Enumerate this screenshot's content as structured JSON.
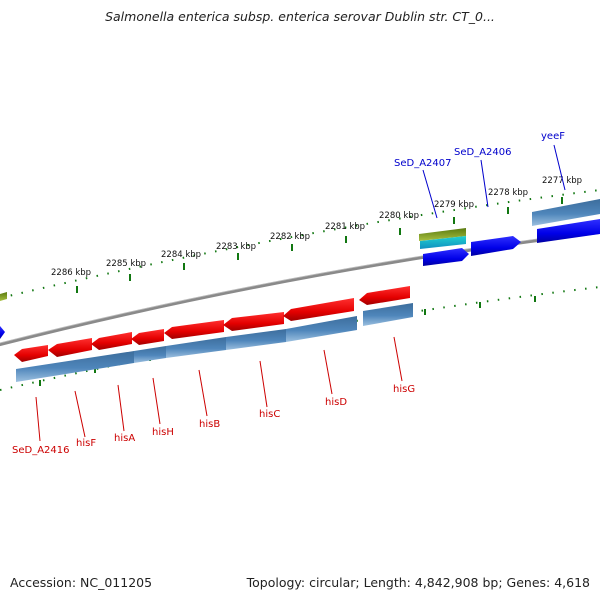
{
  "title": "Salmonella enterica subsp. enterica serovar Dublin str. CT_0...",
  "footer": {
    "accession": "Accession: NC_011205",
    "topology": "Topology: circular; Length: 4,842,908 bp; Genes: 4,618"
  },
  "scale_labels": [
    "2286 kbp",
    "2285 kbp",
    "2284 kbp",
    "2283 kbp",
    "2282 kbp",
    "2281 kbp",
    "2280 kbp",
    "2279 kbp",
    "2278 kbp",
    "2277 kbp"
  ],
  "gene_labels": {
    "red": [
      "SeD_A2416",
      "hisF",
      "hisA",
      "hisH",
      "hisB",
      "hisC",
      "hisD",
      "hisG"
    ],
    "blue": [
      "SeD_A2407",
      "SeD_A2406",
      "yeeF"
    ]
  },
  "colors": {
    "cds_reverse": "#ee0000",
    "cds_forward": "#0000ee",
    "gene_track": "#4a7fb0",
    "backbone": "#888888",
    "ticks": "#117711",
    "label_red": "#cc0000",
    "label_blue": "#0000cc"
  }
}
